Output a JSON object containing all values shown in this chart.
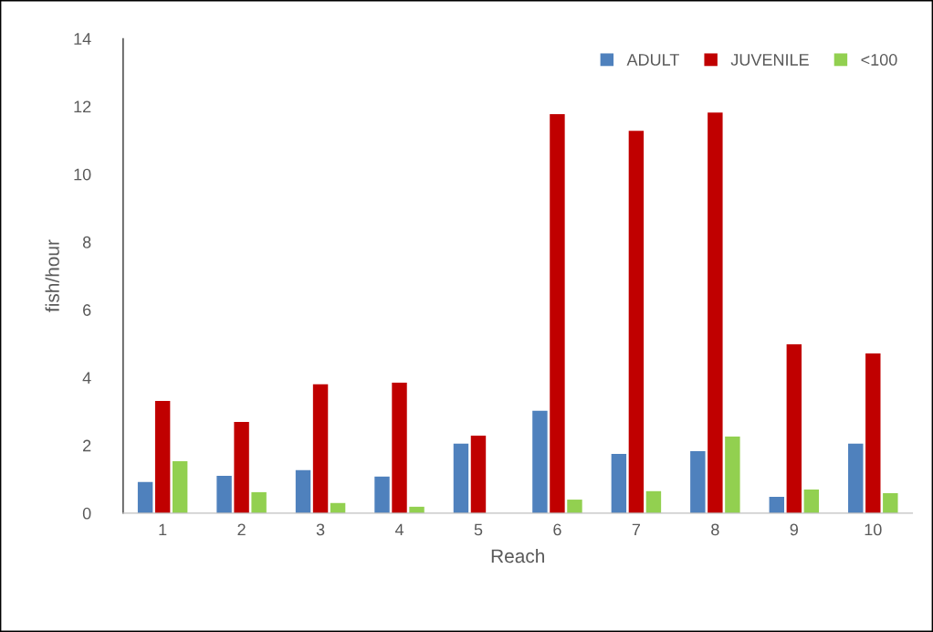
{
  "chart_data": {
    "type": "bar",
    "xlabel": "Reach",
    "ylabel": "fish/hour",
    "categories": [
      "1",
      "2",
      "3",
      "4",
      "5",
      "6",
      "7",
      "8",
      "9",
      "10"
    ],
    "series": [
      {
        "name": "ADULT",
        "color": "#4f81bd",
        "values": [
          0.92,
          1.1,
          1.27,
          1.08,
          2.05,
          3.02,
          1.75,
          1.83,
          0.48,
          2.05
        ]
      },
      {
        "name": "JUVENILE",
        "color": "#c00000",
        "values": [
          3.31,
          2.69,
          3.8,
          3.85,
          2.29,
          11.77,
          11.28,
          11.82,
          4.98,
          4.71
        ]
      },
      {
        "name": "<100",
        "color": "#92d050",
        "values": [
          1.53,
          0.62,
          0.3,
          0.19,
          0,
          0.4,
          0.65,
          2.26,
          0.7,
          0.59
        ]
      }
    ],
    "ylim": [
      0,
      14
    ],
    "yticks": [
      0,
      2,
      4,
      6,
      8,
      10,
      12,
      14
    ],
    "grid": false,
    "legend": "top right"
  }
}
